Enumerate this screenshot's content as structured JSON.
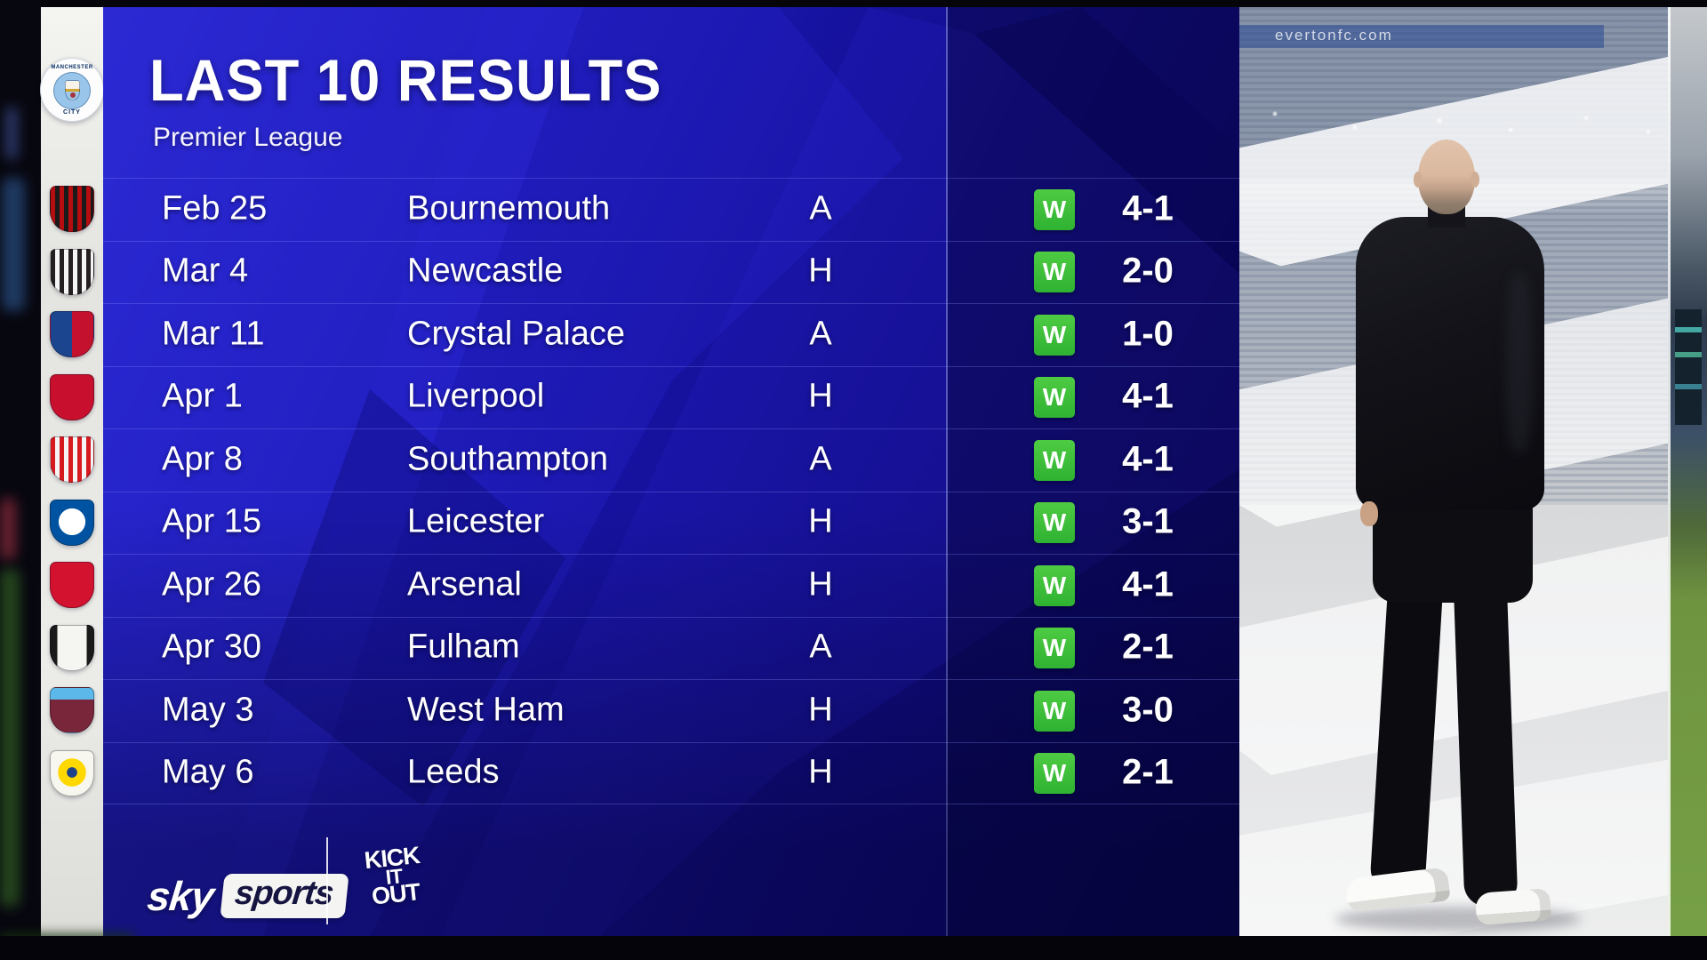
{
  "header": {
    "title": "LAST 10 RESULTS",
    "subtitle": "Premier League",
    "club_badge": {
      "text_top": "MANCHESTER",
      "text_bottom": "CITY",
      "colors": [
        "#ffffff",
        "#98c5e9",
        "#00285e"
      ]
    }
  },
  "results": {
    "rows": [
      {
        "date": "Feb 25",
        "opponent": "Bournemouth",
        "venue": "A",
        "result": "W",
        "score": "4-1",
        "badge": {
          "style": "vstripes",
          "colors": [
            "#b50d10",
            "#1a1a1a"
          ]
        }
      },
      {
        "date": "Mar 4",
        "opponent": "Newcastle",
        "venue": "H",
        "result": "W",
        "score": "2-0",
        "badge": {
          "style": "vstripes",
          "colors": [
            "#241f20",
            "#f5f5f5"
          ]
        }
      },
      {
        "date": "Mar 11",
        "opponent": "Crystal Palace",
        "venue": "A",
        "result": "W",
        "score": "1-0",
        "badge": {
          "style": "split",
          "colors": [
            "#1b458f",
            "#c4122e"
          ]
        }
      },
      {
        "date": "Apr 1",
        "opponent": "Liverpool",
        "venue": "H",
        "result": "W",
        "score": "4-1",
        "badge": {
          "style": "solid",
          "colors": [
            "#c8102e"
          ]
        }
      },
      {
        "date": "Apr 8",
        "opponent": "Southampton",
        "venue": "A",
        "result": "W",
        "score": "4-1",
        "badge": {
          "style": "vstripes",
          "colors": [
            "#d71920",
            "#f5f5f5"
          ]
        }
      },
      {
        "date": "Apr 15",
        "opponent": "Leicester",
        "venue": "H",
        "result": "W",
        "score": "3-1",
        "badge": {
          "style": "ring",
          "colors": [
            "#0053a0",
            "#ffffff"
          ]
        }
      },
      {
        "date": "Apr 26",
        "opponent": "Arsenal",
        "venue": "H",
        "result": "W",
        "score": "4-1",
        "badge": {
          "style": "solid",
          "colors": [
            "#d2122e"
          ]
        }
      },
      {
        "date": "Apr 30",
        "opponent": "Fulham",
        "venue": "A",
        "result": "W",
        "score": "2-1",
        "badge": {
          "style": "bars",
          "colors": [
            "#f5f5f2",
            "#1a1a1a"
          ]
        }
      },
      {
        "date": "May 3",
        "opponent": "West Ham",
        "venue": "H",
        "result": "W",
        "score": "3-0",
        "badge": {
          "style": "topband",
          "colors": [
            "#7a263a",
            "#5bb8e8"
          ]
        }
      },
      {
        "date": "May 6",
        "opponent": "Leeds",
        "venue": "H",
        "result": "W",
        "score": "2-1",
        "badge": {
          "style": "ring",
          "colors": [
            "#f7f7f0",
            "#ffd800",
            "#1d428a"
          ]
        }
      }
    ]
  },
  "footer": {
    "sky": "sky",
    "sports": "sports",
    "kick_it_out": [
      "KICK",
      "IT",
      "OUT"
    ]
  },
  "photo": {
    "watermark": "evertonfc.com"
  },
  "colors": {
    "panel_blue_bright": "#2b29cf",
    "panel_blue": "#1713a2",
    "panel_blue_dark": "#0a075e",
    "divider_line": "#96a0ff",
    "win_green": "#3bc13b",
    "strip_white": "#ecece9",
    "text_white": "#ffffff",
    "sky_sports_box_text": "#161440"
  }
}
